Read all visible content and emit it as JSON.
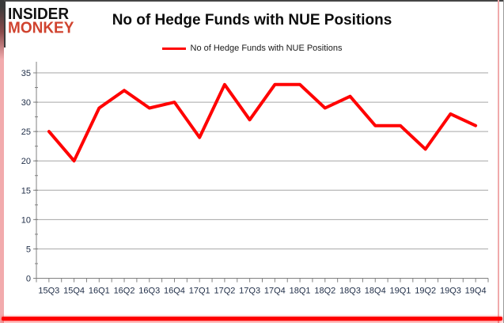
{
  "logo": {
    "line1": "INSIDER",
    "line2": "MONKEY"
  },
  "header": {
    "title": "No of Hedge Funds with NUE Positions"
  },
  "legend": {
    "label": "No of Hedge Funds with NUE Positions"
  },
  "colors": {
    "series_red": "#ff0000",
    "logo_red": "#d0432f",
    "logo_black": "#121212",
    "grid_gray": "#a6a6a6",
    "axis_gray": "#808080",
    "tick_label": "#22304a",
    "frame_pink": "#f2abad",
    "frame_bottom_red": "#ff0000"
  },
  "chart_data": {
    "type": "line",
    "title": "No of Hedge Funds with NUE Positions",
    "categories": [
      "15Q3",
      "15Q4",
      "16Q1",
      "16Q2",
      "16Q3",
      "16Q4",
      "17Q1",
      "17Q2",
      "17Q3",
      "17Q4",
      "18Q1",
      "18Q2",
      "18Q3",
      "18Q4",
      "19Q1",
      "19Q2",
      "19Q3",
      "19Q4"
    ],
    "series": [
      {
        "name": "No of Hedge Funds with NUE Positions",
        "color": "#ff0000",
        "values": [
          25,
          20,
          29,
          32,
          29,
          30,
          24,
          33,
          27,
          33,
          33,
          29,
          31,
          26,
          26,
          22,
          28,
          26
        ]
      }
    ],
    "xlabel": "",
    "ylabel": "",
    "ylim": [
      0,
      35
    ],
    "ytick_step": 5,
    "grid": true,
    "legend_position": "top-center"
  }
}
